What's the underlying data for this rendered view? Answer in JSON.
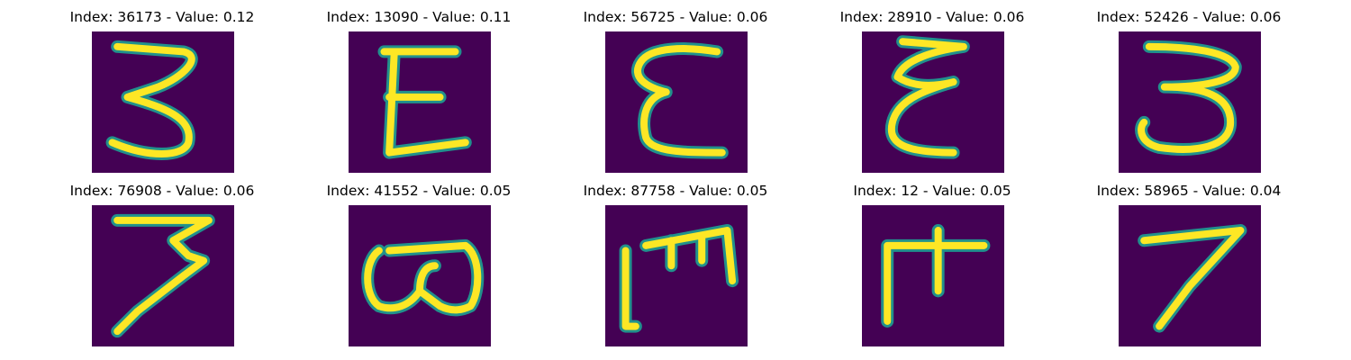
{
  "figure": {
    "panels": [
      {
        "title": "Index: 36173 - Value: 0.12",
        "index": 36173,
        "value": 0.12
      },
      {
        "title": "Index: 13090 - Value: 0.11",
        "index": 13090,
        "value": 0.11
      },
      {
        "title": "Index: 56725 - Value: 0.06",
        "index": 56725,
        "value": 0.06
      },
      {
        "title": "Index: 28910 - Value: 0.06",
        "index": 28910,
        "value": 0.06
      },
      {
        "title": "Index: 52426 - Value: 0.06",
        "index": 52426,
        "value": 0.06
      },
      {
        "title": "Index: 76908 - Value: 0.06",
        "index": 76908,
        "value": 0.06
      },
      {
        "title": "Index: 41552 - Value: 0.05",
        "index": 41552,
        "value": 0.05
      },
      {
        "title": "Index: 87758 - Value: 0.05",
        "index": 87758,
        "value": 0.05
      },
      {
        "title": "Index: 12 - Value: 0.05",
        "index": 12,
        "value": 0.05
      },
      {
        "title": "Index: 58965 - Value: 0.04",
        "index": 58965,
        "value": 0.04
      }
    ],
    "colors": {
      "background": "#440154",
      "edge": "#21918c",
      "foreground": "#fde725"
    }
  }
}
